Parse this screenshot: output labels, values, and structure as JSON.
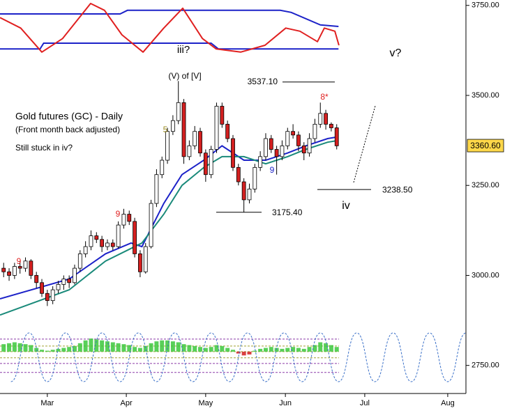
{
  "chart_data": {
    "type": "candlestick",
    "title": "Gold futures (GC) - Daily",
    "subtitle": "(Front month back adjusted)",
    "note": "Still stuck in iv?",
    "ylim": [
      2672,
      3765
    ],
    "yticks": [
      {
        "value": 2750,
        "label": "2750.00"
      },
      {
        "value": 3000,
        "label": "3000.00"
      },
      {
        "value": 3250,
        "label": "3250.00"
      },
      {
        "value": 3500,
        "label": "3500.00"
      },
      {
        "value": 3750,
        "label": "3750.00"
      }
    ],
    "xlim": [
      0,
      128
    ],
    "xticks": [
      {
        "value": 13,
        "label": "Mar"
      },
      {
        "value": 34.7,
        "label": "Apr"
      },
      {
        "value": 56.5,
        "label": "May"
      },
      {
        "value": 78.4,
        "label": "Jun"
      },
      {
        "value": 100.2,
        "label": "Jul"
      },
      {
        "value": 123,
        "label": "Aug"
      }
    ],
    "up_color": "#ffffff",
    "down_color": "#d42020",
    "candles": {
      "x": [
        1,
        2.5,
        4,
        5.5,
        7,
        8.5,
        10,
        11.5,
        13,
        14.5,
        16,
        17.5,
        19,
        20.5,
        22,
        23.5,
        25,
        26.5,
        28,
        29.5,
        31,
        32.5,
        34,
        35.5,
        37,
        38.5,
        40,
        41.5,
        43,
        44.5,
        46,
        47.5,
        49,
        50.5,
        52,
        53.5,
        55,
        56.5,
        58,
        59.5,
        61,
        62.5,
        64,
        65.5,
        67,
        68.5,
        70,
        71.5,
        73,
        74.5,
        76,
        77.5,
        79,
        80.5,
        82,
        83.5,
        85,
        86.5,
        88,
        89.5,
        91,
        92.5
      ],
      "open": [
        3020,
        3010,
        3000,
        3025,
        3020,
        3040,
        3000,
        2980,
        2950,
        2930,
        2960,
        2975,
        2990,
        2980,
        3020,
        3060,
        3080,
        3110,
        3100,
        3080,
        3090,
        3080,
        3140,
        3170,
        3150,
        3060,
        3010,
        3080,
        3200,
        3280,
        3320,
        3400,
        3430,
        3480,
        3330,
        3360,
        3400,
        3340,
        3280,
        3350,
        3470,
        3420,
        3380,
        3300,
        3260,
        3210,
        3240,
        3300,
        3330,
        3380,
        3350,
        3330,
        3360,
        3400,
        3390,
        3360,
        3340,
        3380,
        3420,
        3450,
        3420,
        3410
      ],
      "high": [
        3035,
        3020,
        3035,
        3040,
        3050,
        3045,
        3010,
        2990,
        2960,
        2970,
        2985,
        3000,
        3000,
        3030,
        3070,
        3095,
        3125,
        3120,
        3110,
        3100,
        3100,
        3150,
        3185,
        3180,
        3160,
        3070,
        3090,
        3210,
        3295,
        3330,
        3410,
        3445,
        3540,
        3490,
        3375,
        3415,
        3410,
        3350,
        3360,
        3480,
        3480,
        3430,
        3390,
        3310,
        3270,
        3255,
        3310,
        3345,
        3395,
        3390,
        3360,
        3375,
        3410,
        3420,
        3400,
        3370,
        3395,
        3435,
        3480,
        3460,
        3425,
        3420
      ],
      "low": [
        2995,
        2985,
        2990,
        3005,
        3010,
        2990,
        2965,
        2940,
        2915,
        2920,
        2950,
        2960,
        2965,
        2975,
        3010,
        3050,
        3070,
        3090,
        3065,
        3070,
        3070,
        3075,
        3130,
        3140,
        3050,
        2995,
        3005,
        3075,
        3190,
        3270,
        3310,
        3390,
        3420,
        3310,
        3320,
        3350,
        3330,
        3260,
        3270,
        3340,
        3410,
        3370,
        3290,
        3250,
        3175,
        3200,
        3230,
        3290,
        3320,
        3340,
        3280,
        3320,
        3350,
        3380,
        3345,
        3320,
        3330,
        3370,
        3410,
        3405,
        3400,
        3350
      ],
      "close": [
        3010,
        3000,
        3025,
        3020,
        3040,
        3000,
        2980,
        2950,
        2930,
        2960,
        2975,
        2990,
        2980,
        3020,
        3060,
        3080,
        3110,
        3100,
        3080,
        3090,
        3080,
        3140,
        3170,
        3150,
        3060,
        3010,
        3080,
        3200,
        3280,
        3320,
        3400,
        3430,
        3480,
        3330,
        3360,
        3400,
        3340,
        3280,
        3350,
        3470,
        3420,
        3380,
        3300,
        3260,
        3210,
        3240,
        3300,
        3330,
        3380,
        3350,
        3330,
        3360,
        3400,
        3390,
        3360,
        3340,
        3380,
        3420,
        3450,
        3420,
        3410,
        3360
      ]
    },
    "moving_averages": [
      {
        "color": "#1c22c8",
        "x": [
          0,
          19,
          29,
          36,
          39,
          45,
          50,
          56,
          61,
          67,
          73,
          79,
          84,
          90,
          93
        ],
        "values": [
          2935,
          2990,
          3060,
          3090,
          3080,
          3200,
          3280,
          3320,
          3360,
          3320,
          3320,
          3340,
          3360,
          3380,
          3385
        ]
      },
      {
        "color": "#1a8a7a",
        "x": [
          0,
          19,
          29,
          36,
          39,
          45,
          50,
          56,
          61,
          67,
          73,
          79,
          84,
          90,
          93
        ],
        "values": [
          2890,
          2960,
          3040,
          3075,
          3090,
          3170,
          3250,
          3300,
          3330,
          3330,
          3310,
          3330,
          3350,
          3370,
          3375
        ]
      }
    ],
    "last_price": 3360.6,
    "last_price_label": "3360.60",
    "levels": [
      {
        "text": "3537.10",
        "value": 3537.1
      },
      {
        "text": "3175.40",
        "value": 3175.4
      },
      {
        "text": "3238.50",
        "value": 3238.5
      }
    ],
    "wave_labels": [
      "iii?",
      "(V) of [V]",
      "iv",
      "v?",
      "5",
      "9",
      "9",
      "9",
      "8*"
    ],
    "oscillator_panel": {
      "ylim": [
        0,
        100
      ],
      "upper_band": {
        "color": "#1c22c8",
        "x": [
          0,
          33,
          35,
          77,
          80,
          88,
          93
        ],
        "values": [
          80,
          80,
          87,
          87,
          83,
          59,
          56
        ]
      },
      "lower_band": {
        "color": "#1c22c8",
        "x": [
          0,
          11,
          12,
          58,
          60,
          93
        ],
        "values": [
          13,
          13,
          24,
          24,
          13,
          13
        ]
      },
      "oscillator": {
        "color": "#e02020",
        "x": [
          0,
          5.7,
          11.5,
          17.2,
          24.9,
          28.7,
          33.5,
          39.3,
          45,
          50.2,
          55.6,
          59.4,
          66.1,
          72.8,
          78.5,
          82.4,
          87.2,
          89.1,
          92,
          93.1
        ],
        "values": [
          73,
          53,
          7,
          33,
          100,
          87,
          40,
          7,
          53,
          91,
          33,
          13,
          7,
          20,
          53,
          47,
          27,
          53,
          47,
          20
        ]
      }
    },
    "cycle_panel": {
      "ylim": [
        -160,
        100
      ],
      "histogram": {
        "up_color": "#3cc83c",
        "down_color": "#d42020",
        "values": [
          40,
          45,
          50,
          45,
          40,
          35,
          20,
          10,
          5,
          10,
          15,
          20,
          25,
          30,
          45,
          60,
          70,
          65,
          60,
          55,
          50,
          45,
          40,
          35,
          25,
          20,
          30,
          45,
          55,
          60,
          60,
          55,
          50,
          40,
          35,
          30,
          25,
          20,
          25,
          35,
          30,
          20,
          10,
          -10,
          -20,
          -15,
          5,
          15,
          20,
          25,
          20,
          15,
          20,
          25,
          20,
          15,
          25,
          35,
          50,
          45,
          35,
          25
        ]
      },
      "cycle": {
        "color": "#3a70c8",
        "x": [
          3,
          8,
          13,
          18,
          23,
          28,
          33,
          38,
          43,
          48,
          53,
          58,
          63,
          68,
          73,
          78,
          83,
          88,
          93,
          98,
          103,
          108,
          113,
          118,
          123,
          128
        ],
        "values": [
          -160,
          100,
          -160,
          100,
          -160,
          100,
          -160,
          100,
          -160,
          100,
          -160,
          100,
          -160,
          100,
          -160,
          100,
          -160,
          100,
          -160,
          100,
          -160,
          100,
          -160,
          100,
          -160,
          100
        ]
      },
      "levels": [
        67,
        30,
        0,
        -33,
        -63,
        -111
      ],
      "level_colors": [
        "#8a3aa8",
        "#a0a030",
        "#a0a030",
        "#a0a030",
        "#8a3aa8",
        "#8a3aa8"
      ]
    }
  }
}
